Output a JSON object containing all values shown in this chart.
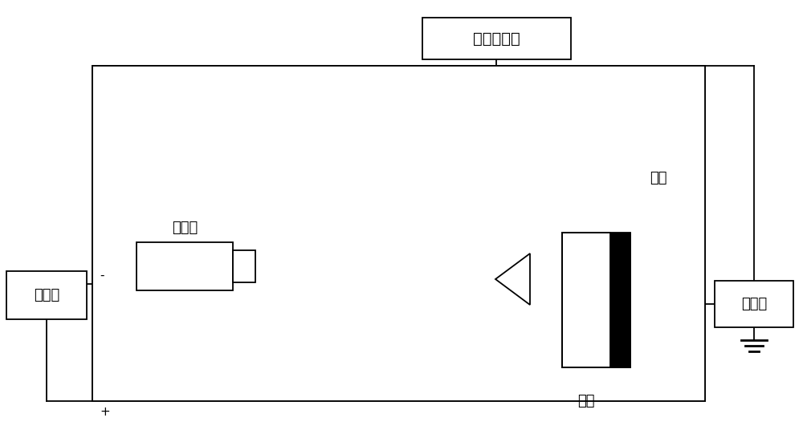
{
  "fig_width": 10.0,
  "fig_height": 5.56,
  "bg_color": "#ffffff",
  "lc": "#000000",
  "lw": 1.3,
  "label_dianya": "电压源",
  "label_dianzi": "电子枪",
  "label_jingdian": "静电电位计",
  "label_yangpin": "样品",
  "label_dianliu": "电流计",
  "label_dianji": "电极",
  "minus": "-",
  "plus": "+"
}
